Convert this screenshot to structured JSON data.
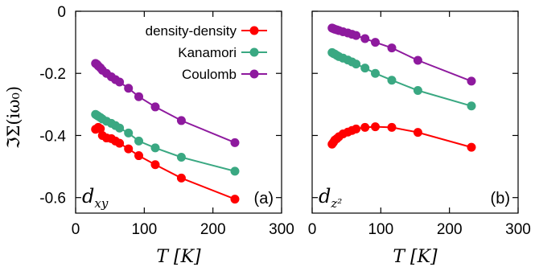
{
  "figure": {
    "ylabel": "ℑΣ(iω₀)",
    "colors": {
      "density-density": "#ff0000",
      "Kanamori": "#3aa882",
      "Coulomb": "#8e1a9e"
    }
  },
  "chart_data": [
    {
      "type": "line",
      "panel_tag": "(a)",
      "orbital_label": {
        "main": "d",
        "sub": "xy"
      },
      "xlabel": "T [K]",
      "ylabel": "ℑΣ(iω₀)",
      "xlim": [
        0,
        300
      ],
      "ylim": [
        -0.65,
        0
      ],
      "xticks": [
        "0",
        "100",
        "200",
        "300"
      ],
      "yticks": [
        "0",
        "-0.2",
        "-0.4",
        "-0.6"
      ],
      "legend": {
        "placement": "top-right",
        "entries": [
          "density-density",
          "Kanamori",
          "Coulomb"
        ]
      },
      "series": [
        {
          "name": "density-density",
          "color": "#ff0000",
          "x": [
            29,
            31,
            33,
            36,
            39,
            45,
            52,
            58,
            64,
            77,
            92,
            116,
            154,
            232
          ],
          "y": [
            -0.38,
            -0.378,
            -0.374,
            -0.378,
            -0.4,
            -0.408,
            -0.41,
            -0.418,
            -0.425,
            -0.443,
            -0.465,
            -0.494,
            -0.537,
            -0.605
          ]
        },
        {
          "name": "Kanamori",
          "color": "#3aa882",
          "x": [
            29,
            31,
            33,
            36,
            39,
            45,
            52,
            58,
            64,
            77,
            92,
            116,
            154,
            232
          ],
          "y": [
            -0.332,
            -0.335,
            -0.338,
            -0.342,
            -0.347,
            -0.354,
            -0.361,
            -0.368,
            -0.376,
            -0.392,
            -0.418,
            -0.44,
            -0.47,
            -0.515
          ]
        },
        {
          "name": "Coulomb",
          "color": "#8e1a9e",
          "x": [
            29,
            31,
            33,
            36,
            39,
            45,
            52,
            58,
            64,
            77,
            92,
            116,
            154,
            232
          ],
          "y": [
            -0.168,
            -0.171,
            -0.176,
            -0.182,
            -0.19,
            -0.2,
            -0.211,
            -0.22,
            -0.228,
            -0.248,
            -0.275,
            -0.308,
            -0.352,
            -0.423
          ]
        }
      ]
    },
    {
      "type": "line",
      "panel_tag": "(b)",
      "orbital_label": {
        "main": "d",
        "sub": "z²"
      },
      "xlabel": "T [K]",
      "xlim": [
        0,
        300
      ],
      "ylim": [
        -0.65,
        0
      ],
      "xticks": [
        "0",
        "100",
        "200",
        "300"
      ],
      "series": [
        {
          "name": "density-density",
          "color": "#ff0000",
          "x": [
            29,
            31,
            33,
            36,
            39,
            45,
            52,
            58,
            64,
            77,
            92,
            116,
            154,
            232
          ],
          "y": [
            -0.428,
            -0.422,
            -0.415,
            -0.41,
            -0.404,
            -0.395,
            -0.389,
            -0.384,
            -0.379,
            -0.374,
            -0.372,
            -0.374,
            -0.39,
            -0.438
          ]
        },
        {
          "name": "Kanamori",
          "color": "#3aa882",
          "x": [
            29,
            31,
            33,
            36,
            39,
            45,
            52,
            58,
            64,
            77,
            92,
            116,
            154,
            232
          ],
          "y": [
            -0.133,
            -0.136,
            -0.138,
            -0.142,
            -0.146,
            -0.151,
            -0.157,
            -0.163,
            -0.17,
            -0.183,
            -0.2,
            -0.222,
            -0.255,
            -0.305
          ]
        },
        {
          "name": "Coulomb",
          "color": "#8e1a9e",
          "x": [
            29,
            31,
            33,
            36,
            39,
            45,
            52,
            58,
            64,
            77,
            92,
            116,
            154,
            232
          ],
          "y": [
            -0.054,
            -0.056,
            -0.058,
            -0.06,
            -0.062,
            -0.066,
            -0.07,
            -0.074,
            -0.078,
            -0.088,
            -0.1,
            -0.118,
            -0.158,
            -0.225
          ]
        }
      ]
    }
  ]
}
